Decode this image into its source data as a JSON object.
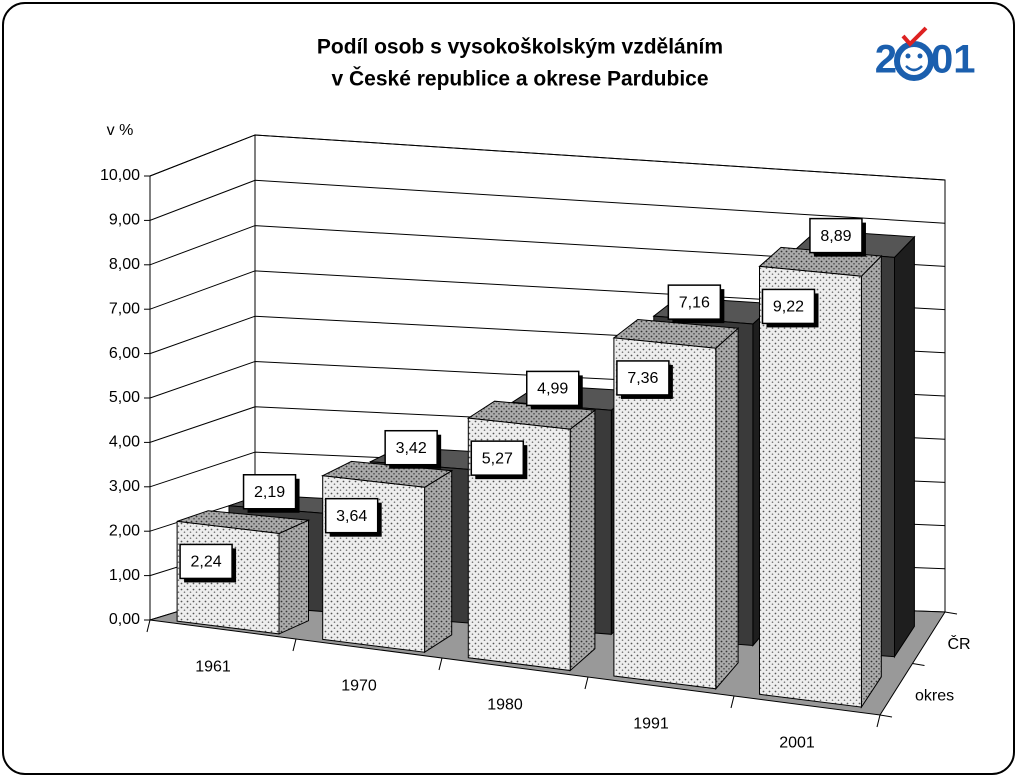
{
  "chart_data": {
    "type": "bar3d",
    "title": [
      "Podíl osob s vysokoškolským vzděláním",
      "v České republice a okrese Pardubice"
    ],
    "logo": {
      "left": "2",
      "right": "01"
    },
    "y_axis_label": "v %",
    "categories": [
      "1961",
      "1970",
      "1980",
      "1991",
      "2001"
    ],
    "series": [
      {
        "name": "ČR",
        "color": "#3a3a3a",
        "values": [
          2.19,
          3.42,
          4.99,
          7.16,
          8.89
        ],
        "value_labels": [
          "2,19",
          "3,42",
          "4,99",
          "7,16",
          "8,89"
        ]
      },
      {
        "name": "okres",
        "color": "#e8e8e8",
        "values": [
          2.24,
          3.64,
          5.27,
          7.36,
          9.22
        ],
        "value_labels": [
          "2,24",
          "3,64",
          "5,27",
          "7,36",
          "9,22"
        ]
      }
    ],
    "ylim": [
      0,
      10
    ],
    "yticks": [
      {
        "value": 0,
        "label": "0,00"
      },
      {
        "value": 1,
        "label": "1,00"
      },
      {
        "value": 2,
        "label": "2,00"
      },
      {
        "value": 3,
        "label": "3,00"
      },
      {
        "value": 4,
        "label": "4,00"
      },
      {
        "value": 5,
        "label": "5,00"
      },
      {
        "value": 6,
        "label": "6,00"
      },
      {
        "value": 7,
        "label": "7,00"
      },
      {
        "value": 8,
        "label": "8,00"
      },
      {
        "value": 9,
        "label": "9,00"
      },
      {
        "value": 10,
        "label": "10,00"
      }
    ],
    "grid": true
  }
}
